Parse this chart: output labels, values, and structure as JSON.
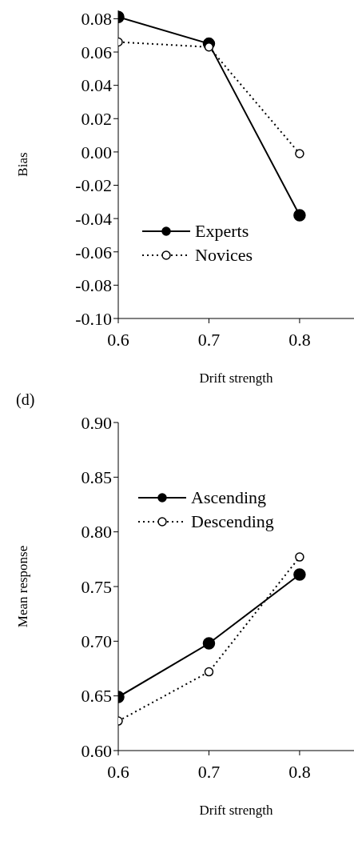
{
  "chart_data": [
    {
      "type": "line",
      "xlabel": "Drift strength",
      "ylabel": "Bias",
      "x": [
        0.6,
        0.7,
        0.8
      ],
      "xlim": [
        0.6,
        0.86
      ],
      "xticks": [
        0.6,
        0.7,
        0.8
      ],
      "ylim": [
        -0.1,
        0.085
      ],
      "yticks": [
        {
          "value": -0.1,
          "label": "-0.10"
        },
        {
          "value": -0.08,
          "label": "-0.08"
        },
        {
          "value": -0.06,
          "label": "-0.06"
        },
        {
          "value": -0.04,
          "label": "-0.04"
        },
        {
          "value": -0.02,
          "label": "-0.02"
        },
        {
          "value": 0,
          "label": "0.00"
        },
        {
          "value": 0.02,
          "label": "0.02"
        },
        {
          "value": 0.04,
          "label": "0.04"
        },
        {
          "value": 0.06,
          "label": "0.06"
        },
        {
          "value": 0.08,
          "label": "0.08"
        }
      ],
      "grid": false,
      "legend": "bottom left",
      "marker": "circle",
      "series": [
        {
          "name": "Experts",
          "color": "#000000",
          "line_style": "solid",
          "values": [
            0.081,
            0.065,
            -0.038
          ]
        },
        {
          "name": "Novices",
          "color": "#000000",
          "line_style": "dotted",
          "values": [
            0.066,
            0.063,
            -0.001
          ]
        }
      ]
    },
    {
      "type": "line",
      "annotations": [
        "(d)"
      ],
      "xlabel": "Drift strength",
      "ylabel": "Mean response",
      "x": [
        0.6,
        0.7,
        0.8
      ],
      "xlim": [
        0.6,
        0.86
      ],
      "xticks": [
        0.6,
        0.7,
        0.8
      ],
      "ylim": [
        0.6,
        0.9
      ],
      "yticks": [
        {
          "value": 0.6,
          "label": "0.60"
        },
        {
          "value": 0.65,
          "label": "0.65"
        },
        {
          "value": 0.7,
          "label": "0.70"
        },
        {
          "value": 0.75,
          "label": "0.75"
        },
        {
          "value": 0.8,
          "label": "0.80"
        },
        {
          "value": 0.85,
          "label": "0.85"
        },
        {
          "value": 0.9,
          "label": "0.90"
        }
      ],
      "grid": false,
      "legend": "top left",
      "marker": "circle",
      "series": [
        {
          "name": "Ascending",
          "color": "#000000",
          "line_style": "solid",
          "values": [
            0.649,
            0.698,
            0.761
          ]
        },
        {
          "name": "Descending",
          "color": "#000000",
          "line_style": "dotted",
          "values": [
            0.627,
            0.672,
            0.777
          ]
        }
      ]
    }
  ]
}
